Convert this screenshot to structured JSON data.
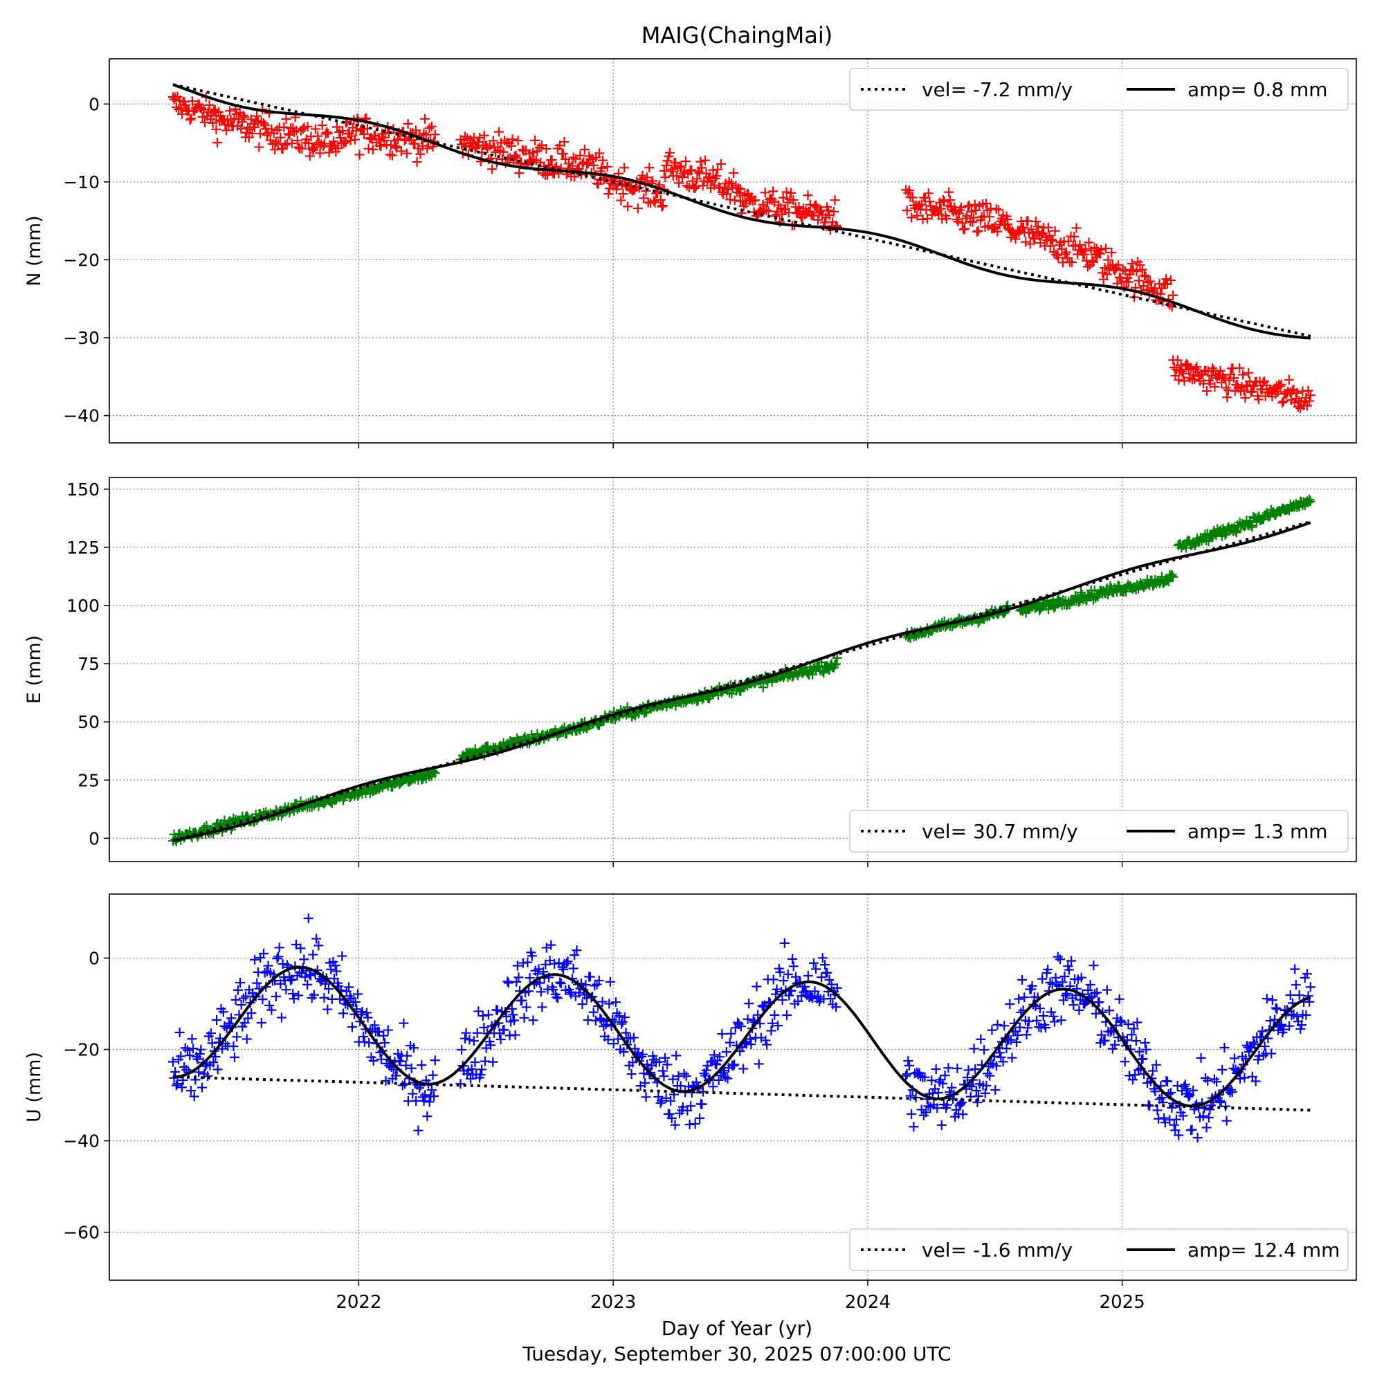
{
  "figure": {
    "title": "MAIG(ChaingMai)",
    "xlabel": "Day of Year (yr)",
    "timestamp": "Tuesday, September 30, 2025 07:00:00 UTC"
  },
  "chart_data": [
    {
      "type": "scatter",
      "ylabel": "N (mm)",
      "xlim": [
        2021.02,
        2025.92
      ],
      "ylim": [
        -43.5,
        5.8
      ],
      "xticks": [
        2022,
        2023,
        2024,
        2025
      ],
      "yticks": [
        0,
        -10,
        -20,
        -30,
        -40
      ],
      "xtick_labels_visible": false,
      "grid": true,
      "point_color": "#ff0000",
      "marker": "+",
      "legend_position": "top-right",
      "legend": [
        "vel= -7.2 mm/y",
        "amp= 0.8 mm"
      ],
      "velocity_line": {
        "name": "vel= -7.2 mm/y",
        "style": "dotted",
        "x": [
          2021.27,
          2025.74
        ],
        "y": [
          2.5,
          -29.8
        ]
      },
      "seasonal_fit": {
        "name": "amp= 0.8 mm",
        "style": "solid",
        "x0": 2021.27,
        "y0": 2.5,
        "velocity": -7.2,
        "amplitude": 0.8,
        "phase": 3.0,
        "x_end": 2025.74
      },
      "segments": [
        {
          "x": [
            2021.27,
            2021.44
          ],
          "y": [
            0.0,
            -1.5
          ],
          "spread": 1.6
        },
        {
          "x": [
            2021.44,
            2021.95
          ],
          "y": [
            -2.0,
            -5.5
          ],
          "spread": 2.0
        },
        {
          "x": [
            2021.95,
            2022.3
          ],
          "y": [
            -3.5,
            -4.8
          ],
          "spread": 2.0
        },
        {
          "x": [
            2022.4,
            2022.95
          ],
          "y": [
            -5.0,
            -8.5
          ],
          "spread": 2.0
        },
        {
          "x": [
            2022.95,
            2023.2
          ],
          "y": [
            -9.5,
            -11.5
          ],
          "spread": 2.0
        },
        {
          "x": [
            2023.2,
            2023.5
          ],
          "y": [
            -8.0,
            -11.0
          ],
          "spread": 2.0
        },
        {
          "x": [
            2023.5,
            2023.88
          ],
          "y": [
            -12.5,
            -14.5
          ],
          "spread": 1.8
        },
        {
          "x": [
            2024.15,
            2024.55
          ],
          "y": [
            -13.0,
            -15.5
          ],
          "spread": 2.0
        },
        {
          "x": [
            2024.55,
            2024.9
          ],
          "y": [
            -16.0,
            -19.5
          ],
          "spread": 2.0
        },
        {
          "x": [
            2024.9,
            2025.2
          ],
          "y": [
            -20.0,
            -24.5
          ],
          "spread": 2.0
        },
        {
          "x": [
            2025.2,
            2025.74
          ],
          "y": [
            -34.0,
            -38.0
          ],
          "spread": 1.6
        }
      ]
    },
    {
      "type": "scatter",
      "ylabel": "E (mm)",
      "xlim": [
        2021.02,
        2025.92
      ],
      "ylim": [
        -10,
        155
      ],
      "xticks": [
        2022,
        2023,
        2024,
        2025
      ],
      "yticks": [
        0,
        25,
        50,
        75,
        100,
        125,
        150
      ],
      "xtick_labels_visible": false,
      "grid": true,
      "point_color": "#008000",
      "marker": "+",
      "legend_position": "bottom-right",
      "legend": [
        "vel= 30.7 mm/y",
        "amp= 1.3 mm"
      ],
      "velocity_line": {
        "name": "vel= 30.7 mm/y",
        "style": "dotted",
        "x": [
          2021.27,
          2025.74
        ],
        "y": [
          -1.0,
          136.0
        ]
      },
      "seasonal_fit": {
        "name": "amp= 1.3 mm",
        "style": "solid",
        "x0": 2021.27,
        "y0": -1.0,
        "velocity": 30.7,
        "amplitude": 1.3,
        "phase": 3.0,
        "x_end": 2025.74
      },
      "segments": [
        {
          "x": [
            2021.27,
            2022.3
          ],
          "y": [
            0.0,
            28.0
          ],
          "spread": 1.8
        },
        {
          "x": [
            2022.4,
            2022.95
          ],
          "y": [
            35.0,
            50.0
          ],
          "spread": 1.8
        },
        {
          "x": [
            2022.95,
            2023.88
          ],
          "y": [
            51.0,
            75.0
          ],
          "spread": 1.8
        },
        {
          "x": [
            2024.15,
            2024.55
          ],
          "y": [
            87.0,
            98.0
          ],
          "spread": 1.8
        },
        {
          "x": [
            2024.6,
            2025.2
          ],
          "y": [
            98.0,
            112.0
          ],
          "spread": 1.8
        },
        {
          "x": [
            2025.22,
            2025.74
          ],
          "y": [
            125.0,
            145.0
          ],
          "spread": 1.8
        }
      ]
    },
    {
      "type": "scatter",
      "ylabel": "U (mm)",
      "xlim": [
        2021.02,
        2025.92
      ],
      "ylim": [
        -70.5,
        14
      ],
      "xticks": [
        2022,
        2023,
        2024,
        2025
      ],
      "yticks": [
        0,
        -20,
        -40,
        -60
      ],
      "xtick_labels_visible": true,
      "grid": true,
      "point_color": "#0000ff",
      "marker": "+",
      "legend_position": "bottom-right",
      "legend": [
        "vel= -1.6 mm/y",
        "amp= 12.4 mm"
      ],
      "velocity_line": {
        "name": "vel= -1.6 mm/y",
        "style": "dotted",
        "x": [
          2021.27,
          2025.74
        ],
        "y": [
          -26.0,
          -33.3
        ]
      },
      "seasonal_fit": {
        "name": "amp= 12.4 mm",
        "style": "solid",
        "x0": 2021.27,
        "y0": -26.0,
        "velocity": -1.6,
        "amplitude": 12.4,
        "phase": 4.7,
        "x_end": 2025.74
      },
      "segments": [
        {
          "x": [
            2021.27,
            2022.3
          ],
          "y": null,
          "spread": 7.0
        },
        {
          "x": [
            2022.4,
            2023.88
          ],
          "y": null,
          "spread": 7.0
        },
        {
          "x": [
            2024.15,
            2025.74
          ],
          "y": null,
          "spread": 7.0
        }
      ]
    }
  ]
}
